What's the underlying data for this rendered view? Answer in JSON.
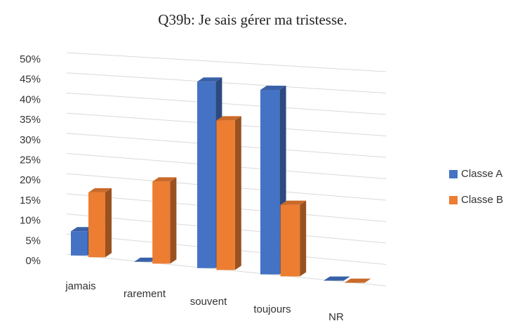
{
  "chart_data": {
    "type": "bar3d",
    "title": "Q39b: Je sais gérer ma tristesse.",
    "categories": [
      "jamais",
      "rarement",
      "souvent",
      "toujours",
      "NR"
    ],
    "series": [
      {
        "name": "Classe A",
        "color": "#4472c4",
        "values": [
          6,
          0,
          45,
          44,
          0
        ]
      },
      {
        "name": "Classe B",
        "color": "#ed7d31",
        "values": [
          16,
          20,
          36,
          17,
          0
        ]
      }
    ],
    "ylim": [
      0,
      50
    ],
    "yticks": [
      {
        "value": 0,
        "label": "0%"
      },
      {
        "value": 5,
        "label": "5%"
      },
      {
        "value": 10,
        "label": "10%"
      },
      {
        "value": 15,
        "label": "15%"
      },
      {
        "value": 20,
        "label": "20%"
      },
      {
        "value": 25,
        "label": "25%"
      },
      {
        "value": 30,
        "label": "30%"
      },
      {
        "value": 35,
        "label": "35%"
      },
      {
        "value": 40,
        "label": "40%"
      },
      {
        "value": 45,
        "label": "45%"
      },
      {
        "value": 50,
        "label": "50%"
      }
    ],
    "grid": true,
    "legend": "right"
  }
}
